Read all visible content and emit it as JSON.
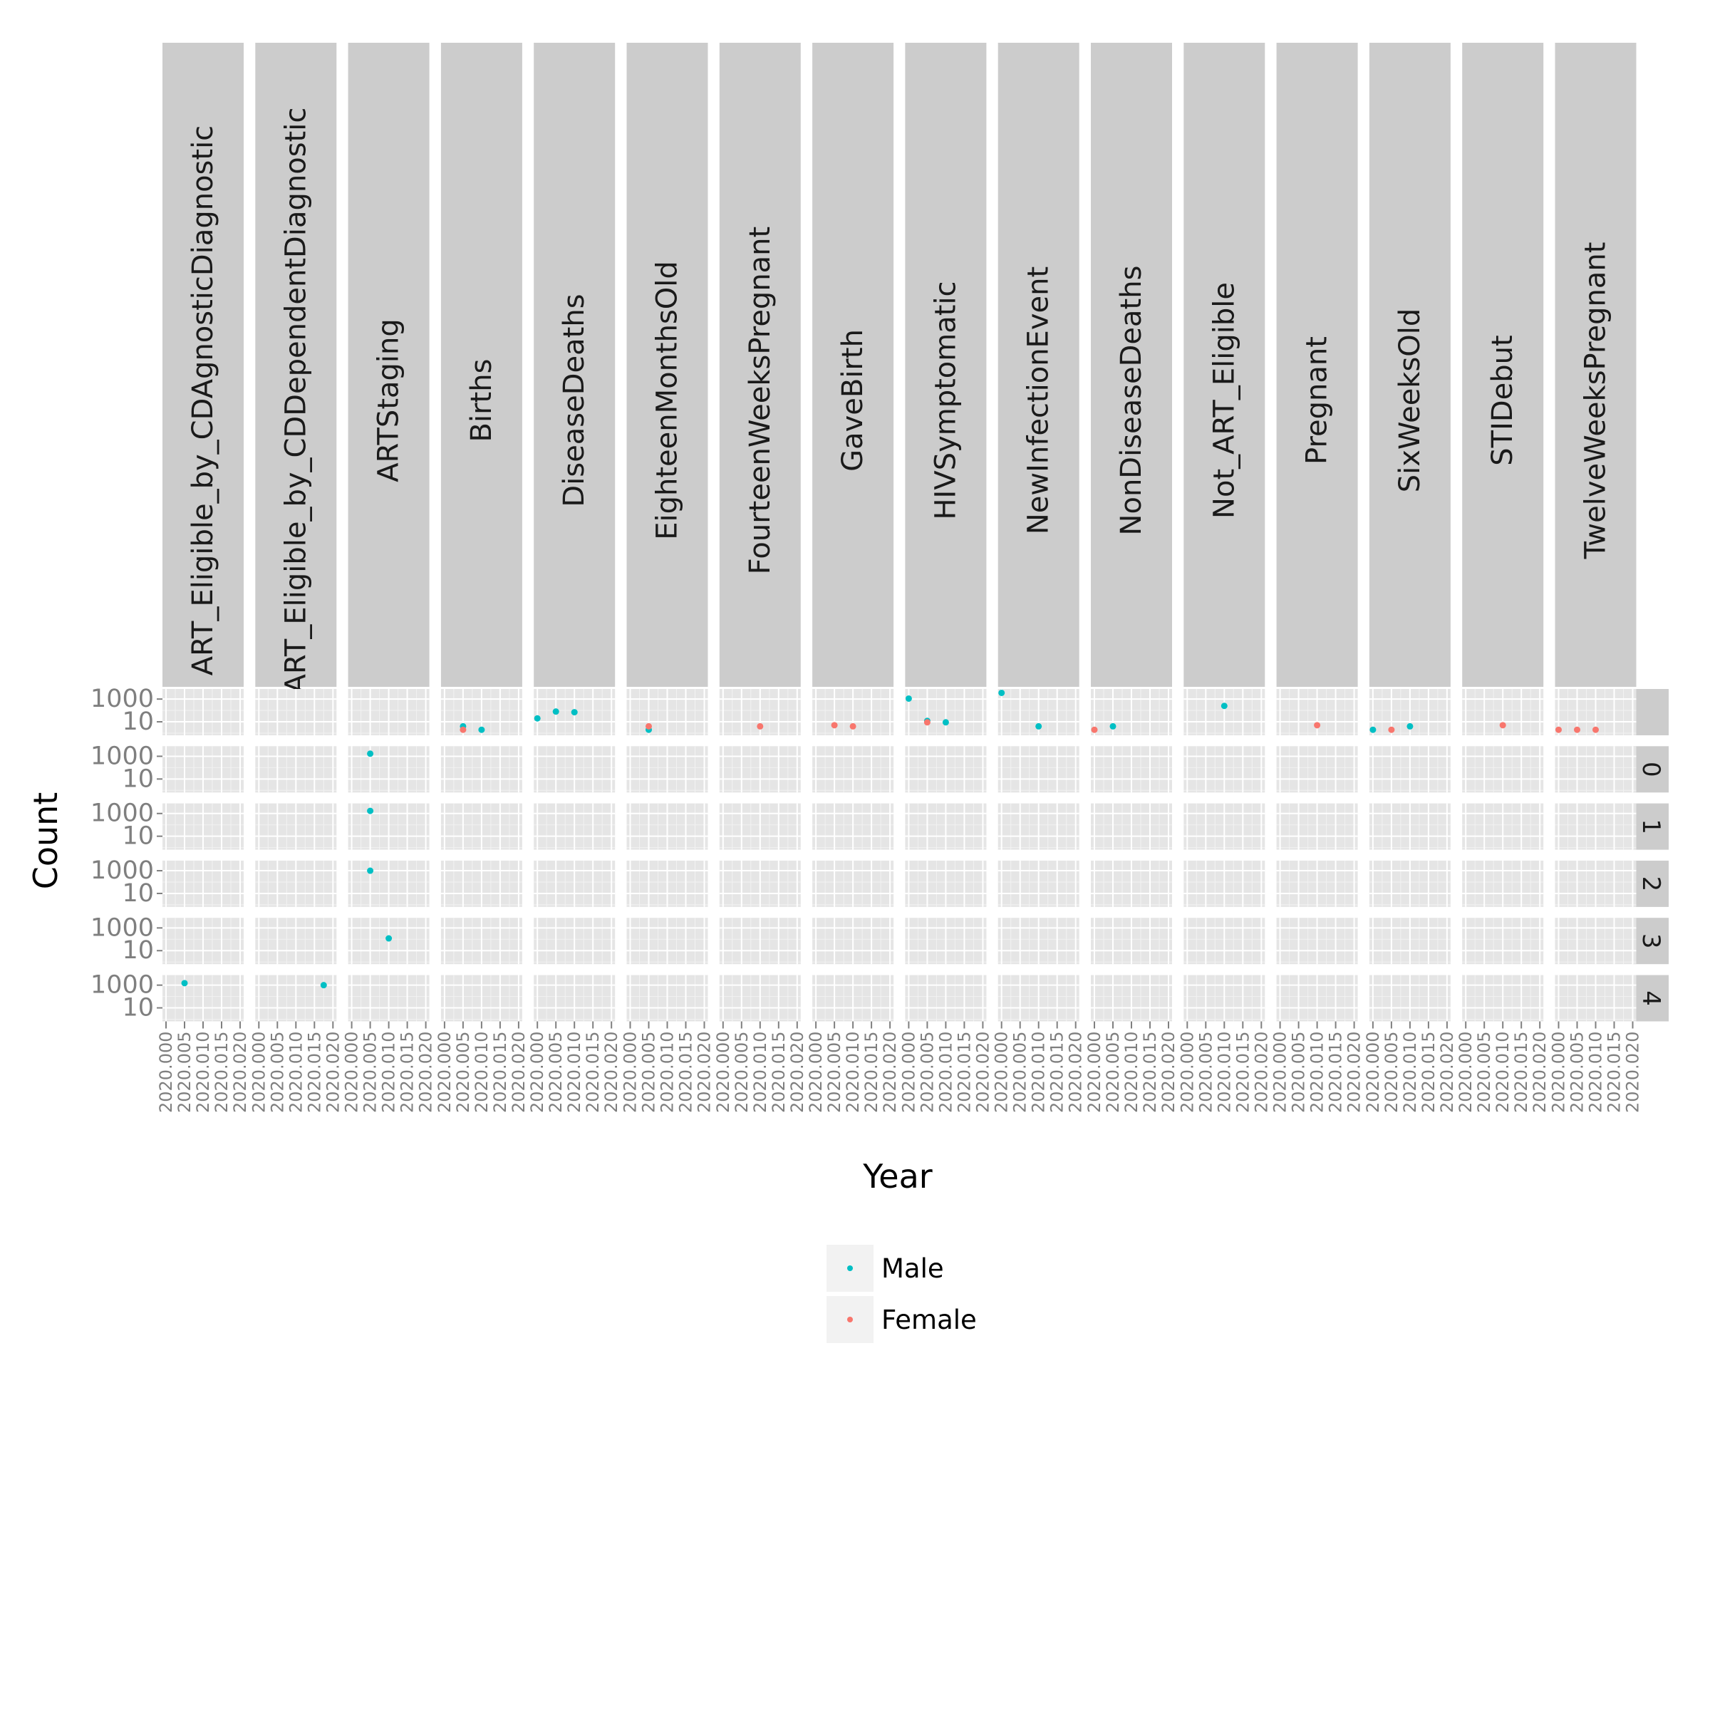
{
  "chart_data": {
    "type": "scatter",
    "xlabel": "Year",
    "ylabel": "Count",
    "y_scale": "log10",
    "ylim": [
      1,
      5000
    ],
    "xlim": [
      2020.0,
      2020.02
    ],
    "x_ticks": [
      "2020.000",
      "2020.005",
      "2020.010",
      "2020.015",
      "2020.020"
    ],
    "y_ticks": [
      "1000",
      "10"
    ],
    "column_facets": [
      "ART_Eligible_by_CDAgnosticDiagnostic",
      "ART_Eligible_by_CDDependentDiagnostic",
      "ARTStaging",
      "Births",
      "DiseaseDeaths",
      "EighteenMonthsOld",
      "FourteenWeeksPregnant",
      "GaveBirth",
      "HIVSymptomatic",
      "NewInfectionEvent",
      "NonDiseaseDeaths",
      "Not_ART_Eligible",
      "Pregnant",
      "SixWeeksOld",
      "STIDebut",
      "TwelveWeeksPregnant"
    ],
    "row_facets": [
      "",
      "0",
      "1",
      "2",
      "3",
      "4"
    ],
    "legend": {
      "position": "bottom",
      "entries": [
        {
          "name": "Male",
          "color": "#00bfc4"
        },
        {
          "name": "Female",
          "color": "#f8766d"
        }
      ]
    },
    "grid": true,
    "series": [
      {
        "name": "Male",
        "color": "#00bfc4",
        "points": [
          {
            "col": 0,
            "row": 5,
            "x": 2020.005,
            "y": 1500
          },
          {
            "col": 1,
            "row": 5,
            "x": 2020.0175,
            "y": 1000
          },
          {
            "col": 2,
            "row": 1,
            "x": 2020.005,
            "y": 1700
          },
          {
            "col": 2,
            "row": 2,
            "x": 2020.005,
            "y": 1700
          },
          {
            "col": 2,
            "row": 3,
            "x": 2020.005,
            "y": 1000
          },
          {
            "col": 2,
            "row": 4,
            "x": 2020.01,
            "y": 120
          },
          {
            "col": 3,
            "row": 0,
            "x": 2020.005,
            "y": 4
          },
          {
            "col": 3,
            "row": 0,
            "x": 2020.01,
            "y": 2
          },
          {
            "col": 4,
            "row": 0,
            "x": 2020.0,
            "y": 20
          },
          {
            "col": 4,
            "row": 0,
            "x": 2020.005,
            "y": 80
          },
          {
            "col": 4,
            "row": 0,
            "x": 2020.01,
            "y": 70
          },
          {
            "col": 5,
            "row": 0,
            "x": 2020.005,
            "y": 2
          },
          {
            "col": 8,
            "row": 0,
            "x": 2020.0,
            "y": 1100
          },
          {
            "col": 8,
            "row": 0,
            "x": 2020.005,
            "y": 12
          },
          {
            "col": 8,
            "row": 0,
            "x": 2020.01,
            "y": 9
          },
          {
            "col": 9,
            "row": 0,
            "x": 2020.0,
            "y": 3500
          },
          {
            "col": 9,
            "row": 0,
            "x": 2020.01,
            "y": 4
          },
          {
            "col": 10,
            "row": 0,
            "x": 2020.005,
            "y": 4
          },
          {
            "col": 11,
            "row": 0,
            "x": 2020.01,
            "y": 250
          },
          {
            "col": 13,
            "row": 0,
            "x": 2020.0,
            "y": 2
          },
          {
            "col": 13,
            "row": 0,
            "x": 2020.01,
            "y": 4
          }
        ]
      },
      {
        "name": "Female",
        "color": "#f8766d",
        "points": [
          {
            "col": 3,
            "row": 0,
            "x": 2020.005,
            "y": 2
          },
          {
            "col": 5,
            "row": 0,
            "x": 2020.005,
            "y": 4
          },
          {
            "col": 6,
            "row": 0,
            "x": 2020.01,
            "y": 4
          },
          {
            "col": 7,
            "row": 0,
            "x": 2020.005,
            "y": 5
          },
          {
            "col": 7,
            "row": 0,
            "x": 2020.01,
            "y": 4
          },
          {
            "col": 8,
            "row": 0,
            "x": 2020.005,
            "y": 9
          },
          {
            "col": 10,
            "row": 0,
            "x": 2020.0,
            "y": 2
          },
          {
            "col": 12,
            "row": 0,
            "x": 2020.01,
            "y": 5
          },
          {
            "col": 13,
            "row": 0,
            "x": 2020.005,
            "y": 2
          },
          {
            "col": 14,
            "row": 0,
            "x": 2020.01,
            "y": 5
          },
          {
            "col": 15,
            "row": 0,
            "x": 2020.0,
            "y": 2
          },
          {
            "col": 15,
            "row": 0,
            "x": 2020.005,
            "y": 2
          },
          {
            "col": 15,
            "row": 0,
            "x": 2020.01,
            "y": 2
          }
        ]
      }
    ]
  }
}
